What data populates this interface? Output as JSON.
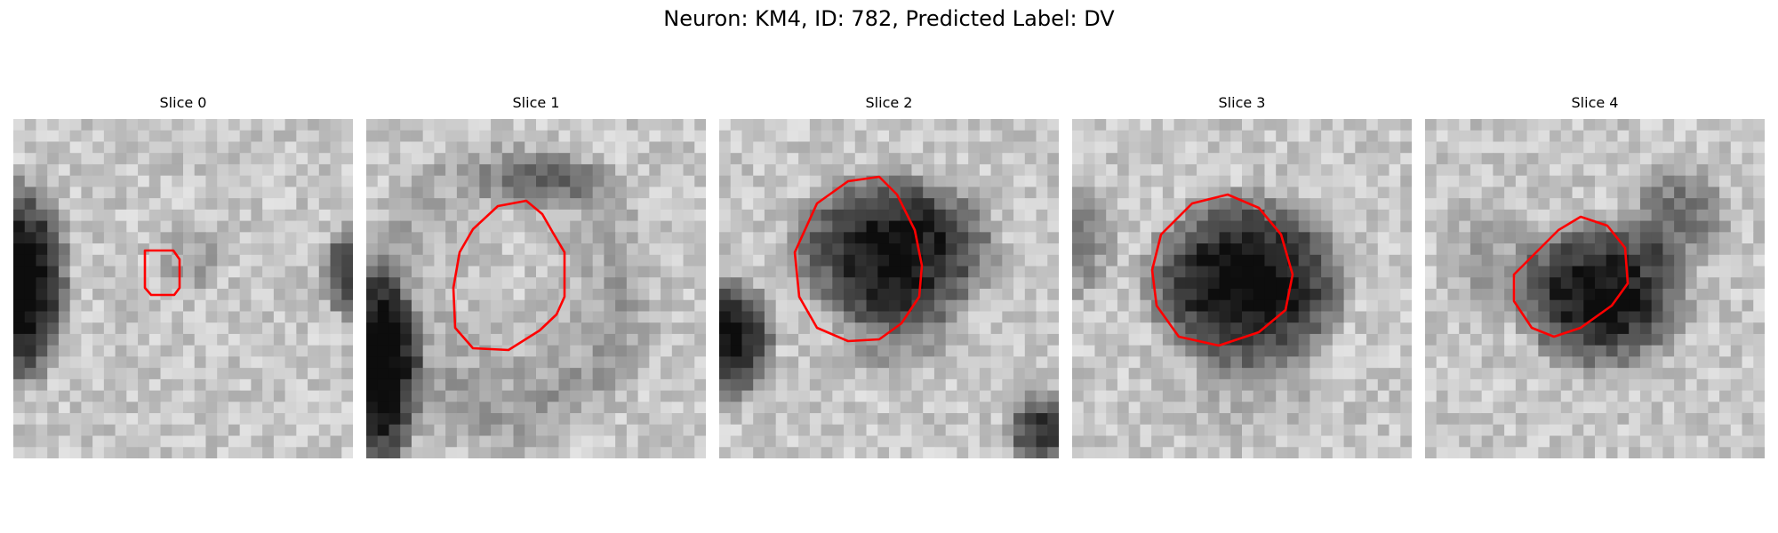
{
  "figure": {
    "title": "Neuron: KM4, ID: 782, Predicted Label: DV"
  },
  "colors": {
    "outline": "#ff0000",
    "background": "#ffffff",
    "colormap": "grayscale"
  },
  "panels": [
    {
      "title": "Slice 0"
    },
    {
      "title": "Slice 1"
    },
    {
      "title": "Slice 2"
    },
    {
      "title": "Slice 3"
    },
    {
      "title": "Slice 4"
    }
  ]
}
